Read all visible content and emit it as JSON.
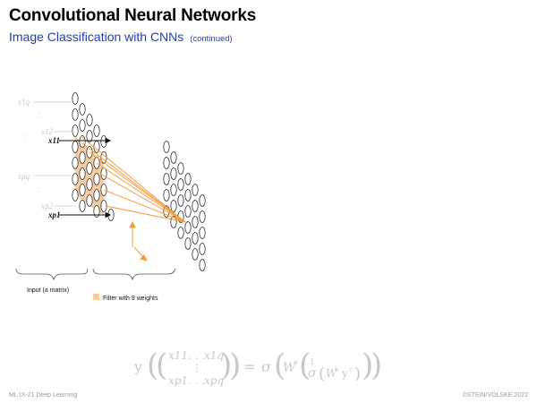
{
  "slide": {
    "title": "Convolutional Neural Networks",
    "subtitle": "Image Classification with CNNs",
    "subtitle_note": "(continued)"
  },
  "diagram": {
    "input_labels": {
      "x1q": "x1q",
      "x12": "x12",
      "x11": "x11",
      "xpq": "xpq",
      "xp2": "xp2",
      "xp1": "xp1"
    },
    "brace_label_input": "Input (a matrix)",
    "legend_filter": "Filter with 9 weights",
    "colors": {
      "filter_fill": "#f8c899",
      "filter_lines": "#f39c3a",
      "faded": "#c8c8c8"
    }
  },
  "formula": {
    "y": "y",
    "m11": "x11",
    "m1q": "x1q",
    "mp1": "xp1",
    "mpq": "xpq",
    "sigma": "σ",
    "w_out": "W",
    "w_h": "W",
    "one": "1"
  },
  "footer": {
    "left": "ML:IX-21   Deep Learning",
    "right": "©STEIN/VÖLSKE 2022"
  }
}
